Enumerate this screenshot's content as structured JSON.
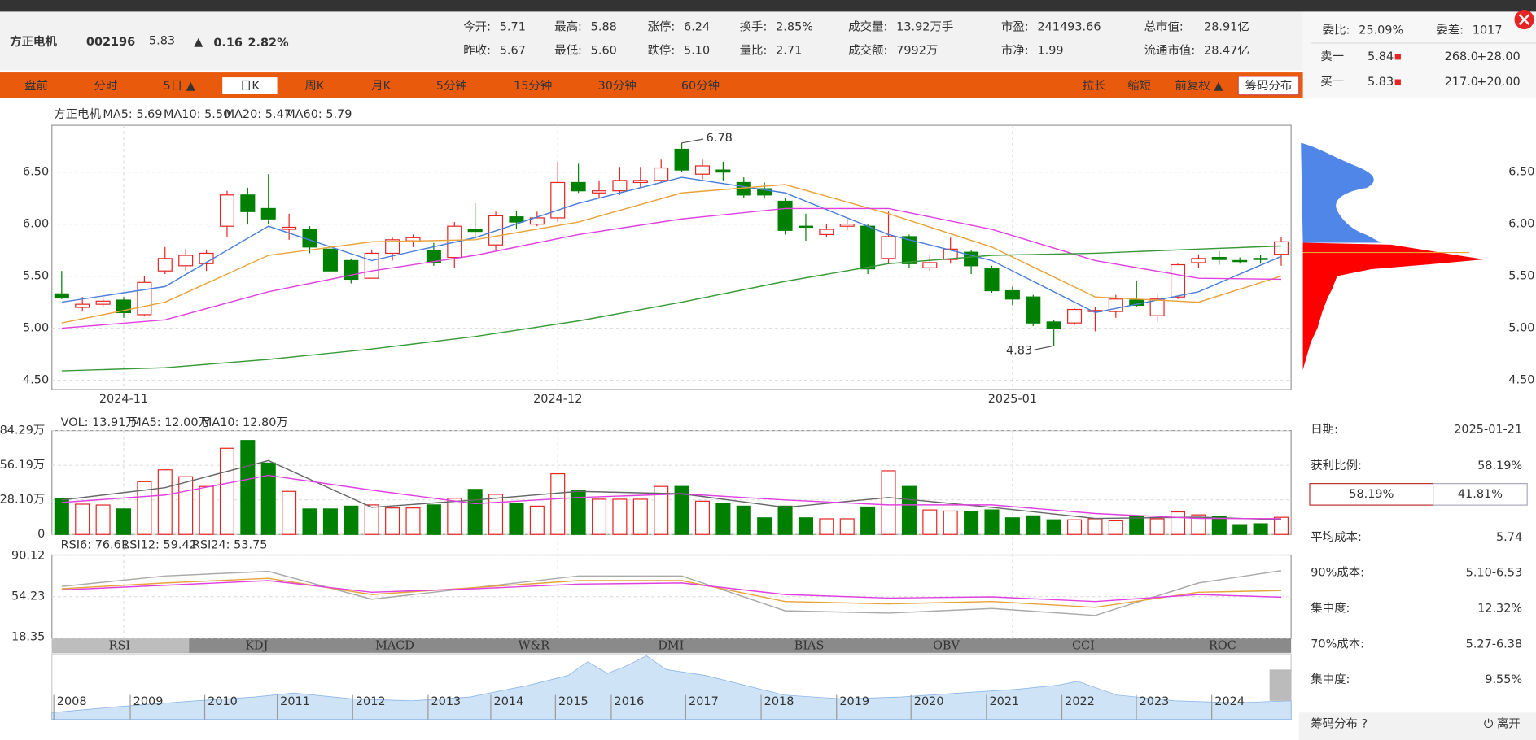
{
  "header": {
    "name": "方正电机",
    "code": "002196",
    "price": "5.83",
    "arrow": "▲",
    "change": "0.16",
    "pct": "2.82%",
    "stats": [
      {
        "label": "今开:",
        "value": "5.71",
        "color": "#e62424"
      },
      {
        "label": "最高:",
        "value": "5.88",
        "color": "#e62424"
      },
      {
        "label": "涨停:",
        "value": "6.24",
        "color": "#e62424"
      },
      {
        "label": "换手:",
        "value": "2.85%",
        "color": "#333333"
      },
      {
        "label": "成交量:",
        "value": "13.92万手",
        "color": "#333333"
      },
      {
        "label": "市盈:",
        "value": "241493.66",
        "color": "#333333"
      },
      {
        "label": "总市值:",
        "value": "28.91亿",
        "color": "#333333"
      },
      {
        "label": "昨收:",
        "value": "5.67",
        "color": "#333333"
      },
      {
        "label": "最低:",
        "value": "5.60",
        "color": "#008000"
      },
      {
        "label": "跌停:",
        "value": "5.10",
        "color": "#008000"
      },
      {
        "label": "量比:",
        "value": "2.71",
        "color": "#333333"
      },
      {
        "label": "成交额:",
        "value": "7992万",
        "color": "#333333"
      },
      {
        "label": "市净:",
        "value": "1.99",
        "color": "#333333"
      },
      {
        "label": "流通市值:",
        "value": "28.47亿",
        "color": "#333333"
      }
    ]
  },
  "toolbar": {
    "tabs": [
      "盘前",
      "分时",
      "5日 ▲",
      "日K",
      "周K",
      "月K",
      "5分钟",
      "15分钟",
      "30分钟",
      "60分钟"
    ],
    "tools": [
      "拉长",
      "缩短",
      "前复权 ▲",
      "筹码分布"
    ]
  },
  "kline": {
    "legend": [
      {
        "text": "方正电机",
        "color": "#333333"
      },
      {
        "text": "MA5: 5.69",
        "color": "#4a7fd8"
      },
      {
        "text": "MA10: 5.50",
        "color": "#e8a33a"
      },
      {
        "text": "MA20: 5.47",
        "color": "#e040e0"
      },
      {
        "text": "MA60: 5.79",
        "color": "#3a9a3a"
      }
    ],
    "up_color": "#e62424",
    "down_color": "#008000",
    "open": [
      5.33,
      5.2,
      5.23,
      5.27,
      5.13,
      5.55,
      5.6,
      5.62,
      5.98,
      6.28,
      6.15,
      5.95,
      5.95,
      5.76,
      5.65,
      5.48,
      5.72,
      5.84,
      5.75,
      5.68,
      5.95,
      5.8,
      6.07,
      6.0,
      6.06,
      6.4,
      6.3,
      6.32,
      6.4,
      6.42,
      6.72,
      6.48,
      6.52,
      6.4,
      6.34,
      6.22,
      5.98,
      5.9,
      5.98,
      5.98,
      5.67,
      5.88,
      5.58,
      5.66,
      5.73,
      5.57,
      5.36,
      5.3,
      5.06,
      5.05,
      5.16,
      5.16,
      5.27,
      5.12,
      5.3,
      5.63,
      5.68,
      5.65,
      5.67,
      5.71
    ],
    "close": [
      5.29,
      5.23,
      5.26,
      5.15,
      5.44,
      5.67,
      5.7,
      5.72,
      6.28,
      6.12,
      6.05,
      5.97,
      5.78,
      5.55,
      5.47,
      5.72,
      5.85,
      5.87,
      5.63,
      5.98,
      5.93,
      6.08,
      6.02,
      6.06,
      6.4,
      6.32,
      6.32,
      6.42,
      6.42,
      6.54,
      6.52,
      6.56,
      6.5,
      6.28,
      6.28,
      5.94,
      5.97,
      5.95,
      6.0,
      5.57,
      5.88,
      5.62,
      5.63,
      5.76,
      5.6,
      5.36,
      5.28,
      5.05,
      5.0,
      5.18,
      5.17,
      5.28,
      5.22,
      5.28,
      5.61,
      5.67,
      5.66,
      5.64,
      5.66,
      5.83
    ],
    "high": [
      5.55,
      5.3,
      5.3,
      5.3,
      5.5,
      5.78,
      5.76,
      5.75,
      6.32,
      6.35,
      6.48,
      6.1,
      5.98,
      5.76,
      5.67,
      5.75,
      5.87,
      5.9,
      5.82,
      6.02,
      6.2,
      6.12,
      6.13,
      6.12,
      6.6,
      6.58,
      6.42,
      6.55,
      6.55,
      6.62,
      6.78,
      6.62,
      6.6,
      6.45,
      6.4,
      6.25,
      6.1,
      6.0,
      6.05,
      6.0,
      6.12,
      5.9,
      5.7,
      5.87,
      5.75,
      5.6,
      5.4,
      5.32,
      5.08,
      5.19,
      5.2,
      5.32,
      5.45,
      5.33,
      5.62,
      5.71,
      5.74,
      5.68,
      5.7,
      5.88
    ],
    "low": [
      5.28,
      5.16,
      5.2,
      5.1,
      5.12,
      5.52,
      5.55,
      5.55,
      5.88,
      6.0,
      6.0,
      5.85,
      5.72,
      5.55,
      5.43,
      5.48,
      5.65,
      5.78,
      5.6,
      5.58,
      5.88,
      5.75,
      5.95,
      5.98,
      6.02,
      6.3,
      6.25,
      6.28,
      6.35,
      6.4,
      6.5,
      6.43,
      6.42,
      6.25,
      6.25,
      5.9,
      5.84,
      5.88,
      5.94,
      5.52,
      5.62,
      5.58,
      5.55,
      5.62,
      5.52,
      5.34,
      5.22,
      5.02,
      4.83,
      5.03,
      4.97,
      5.1,
      5.2,
      5.06,
      5.28,
      5.58,
      5.61,
      5.62,
      5.62,
      5.6
    ],
    "ylim": [
      4.41,
      6.95
    ],
    "yticks": [
      {
        "value": 6.5,
        "label": "6.50"
      },
      {
        "value": 6,
        "label": "6.00"
      },
      {
        "value": 5.5,
        "label": "5.50"
      },
      {
        "value": 5,
        "label": "5.00"
      },
      {
        "value": 4.5,
        "label": "4.50"
      }
    ],
    "annotations": [
      "6.78",
      "4.83"
    ],
    "dates": [
      "2024-11",
      "2024-12",
      "2025-01"
    ],
    "ma": [
      {
        "color": "#4a7fd8",
        "x": [
          0,
          5,
          10,
          15,
          20,
          25,
          30,
          35,
          40,
          45,
          50,
          55,
          59
        ],
        "values": [
          5.25,
          5.4,
          5.98,
          5.65,
          5.87,
          6.2,
          6.45,
          6.3,
          5.9,
          5.65,
          5.15,
          5.35,
          5.69
        ]
      },
      {
        "color": "#e8a33a",
        "x": [
          0,
          5,
          10,
          15,
          20,
          25,
          30,
          35,
          40,
          45,
          50,
          55,
          59
        ],
        "values": [
          5.05,
          5.25,
          5.7,
          5.83,
          5.85,
          6.02,
          6.3,
          6.38,
          6.1,
          5.78,
          5.3,
          5.25,
          5.5
        ]
      },
      {
        "color": "#e040e0",
        "x": [
          0,
          5,
          10,
          15,
          20,
          25,
          30,
          35,
          40,
          45,
          50,
          55,
          59
        ],
        "values": [
          5.0,
          5.08,
          5.35,
          5.55,
          5.7,
          5.9,
          6.05,
          6.15,
          6.15,
          5.95,
          5.65,
          5.48,
          5.47
        ]
      },
      {
        "color": "#3a9a3a",
        "x": [
          0,
          5,
          10,
          15,
          20,
          25,
          30,
          35,
          40,
          45,
          50,
          55,
          59
        ],
        "values": [
          4.59,
          4.62,
          4.7,
          4.8,
          4.92,
          5.07,
          5.25,
          5.45,
          5.62,
          5.7,
          5.72,
          5.76,
          5.79
        ]
      }
    ]
  },
  "volume": {
    "legend": [
      {
        "text": "VOL: 13.91万",
        "color": "#e040e0"
      },
      {
        "text": "MA5: 12.00万",
        "color": "#333333"
      },
      {
        "text": "MA10: 12.80万",
        "color": "#e040e0"
      }
    ],
    "values": [
      29.4,
      24.6,
      23.9,
      20.7,
      42.9,
      52.5,
      46.9,
      39,
      70,
      76.3,
      58,
      35,
      20.7,
      20.7,
      23,
      24,
      21.5,
      21.5,
      24,
      29.4,
      36.6,
      32.6,
      25.4,
      23,
      49.3,
      35.8,
      28.6,
      28.6,
      28.6,
      39,
      39,
      27,
      25.4,
      23,
      13.5,
      23,
      13.5,
      12.7,
      12.7,
      22.3,
      51.7,
      39,
      19.9,
      19,
      18.3,
      19.9,
      13.5,
      15.1,
      11.9,
      11.9,
      12.7,
      11.1,
      15.1,
      12.7,
      18.3,
      15.9,
      14.3,
      8,
      8.7,
      13.91
    ],
    "ylim": [
      0,
      84.29
    ],
    "yticks": [
      {
        "value": 84.29,
        "label": "84.29万"
      },
      {
        "value": 56.19,
        "label": "56.19万"
      },
      {
        "value": 28.1,
        "label": "28.10万"
      },
      0
    ],
    "ma": [
      {
        "color": "#666666",
        "x": [
          0,
          5,
          10,
          15,
          20,
          25,
          30,
          35,
          40,
          45,
          50,
          55,
          59
        ],
        "values": [
          28,
          38,
          60,
          22,
          28,
          35,
          33,
          22,
          30,
          22,
          13,
          14,
          12
        ]
      },
      {
        "color": "#e040e0",
        "x": [
          0,
          5,
          10,
          15,
          20,
          25,
          30,
          35,
          40,
          45,
          50,
          55,
          59
        ],
        "values": [
          26,
          32,
          48,
          36,
          25,
          30,
          33,
          28,
          24,
          24,
          17,
          13,
          12.8
        ]
      }
    ]
  },
  "rsi": {
    "legend": [
      {
        "text": "RSI6: 76.61",
        "color": "#999999"
      },
      {
        "text": "RSI12: 59.42",
        "color": "#e8a33a"
      },
      {
        "text": "RSI24: 53.75",
        "color": "#e040e0"
      }
    ],
    "ylim": [
      18.35,
      90.12
    ],
    "yticks": [
      90.12,
      54.23,
      18.35
    ],
    "series": [
      {
        "color": "#aaaaaa",
        "x": [
          0,
          5,
          10,
          15,
          20,
          25,
          30,
          35,
          40,
          45,
          50,
          55,
          59
        ],
        "values": [
          63,
          72,
          76,
          52,
          62,
          72,
          72,
          42,
          40,
          44,
          38,
          66,
          76.61
        ]
      },
      {
        "color": "#e8a33a",
        "x": [
          0,
          5,
          10,
          15,
          20,
          25,
          30,
          35,
          40,
          45,
          50,
          55,
          59
        ],
        "values": [
          61,
          66,
          70,
          56,
          62,
          68,
          68,
          50,
          48,
          50,
          45,
          58,
          59.42
        ]
      },
      {
        "color": "#e040e0",
        "x": [
          0,
          5,
          10,
          15,
          20,
          25,
          30,
          35,
          40,
          45,
          50,
          55,
          59
        ],
        "values": [
          60,
          64,
          68,
          58,
          61,
          65,
          66,
          56,
          53,
          54,
          50,
          56,
          53.75
        ]
      }
    ]
  },
  "indicators": [
    "RSI",
    "KDJ",
    "MACD",
    "W&R",
    "DMI",
    "BIAS",
    "OBV",
    "CCI",
    "ROC"
  ],
  "years": [
    "2008",
    "2009",
    "2010",
    "2011",
    "2012",
    "2013",
    "2014",
    "2015",
    "2016",
    "2017",
    "2018",
    "2019",
    "2020",
    "2021",
    "2022",
    "2023",
    "2024"
  ],
  "order_book": {
    "weibi_label": "委比:",
    "weibi": "25.09%",
    "weicha_label": "委差:",
    "weicha": "1017",
    "rows": [
      {
        "label": "卖一",
        "price": "5.84",
        "vol": "268.0",
        "chg": "+28.00"
      },
      {
        "label": "买一",
        "price": "5.83",
        "vol": "217.0",
        "chg": "+20.00"
      }
    ]
  },
  "chips": {
    "date_label": "日期:",
    "date": "2025-01-21",
    "profit_label": "获利比例:",
    "profit": "58.19%",
    "bar": [
      "58.19%",
      "41.81%"
    ],
    "rows": [
      {
        "label": "平均成本:",
        "value": "5.74"
      },
      {
        "label": "90%成本:",
        "value": "5.10-6.53"
      },
      {
        "label": "集中度:",
        "value": "12.32%"
      },
      {
        "label": "70%成本:",
        "value": "5.27-6.38"
      },
      {
        "label": "集中度:",
        "value": "9.55%"
      }
    ],
    "footer": "筹码分布 ?",
    "exit": "⏻ 离开"
  }
}
